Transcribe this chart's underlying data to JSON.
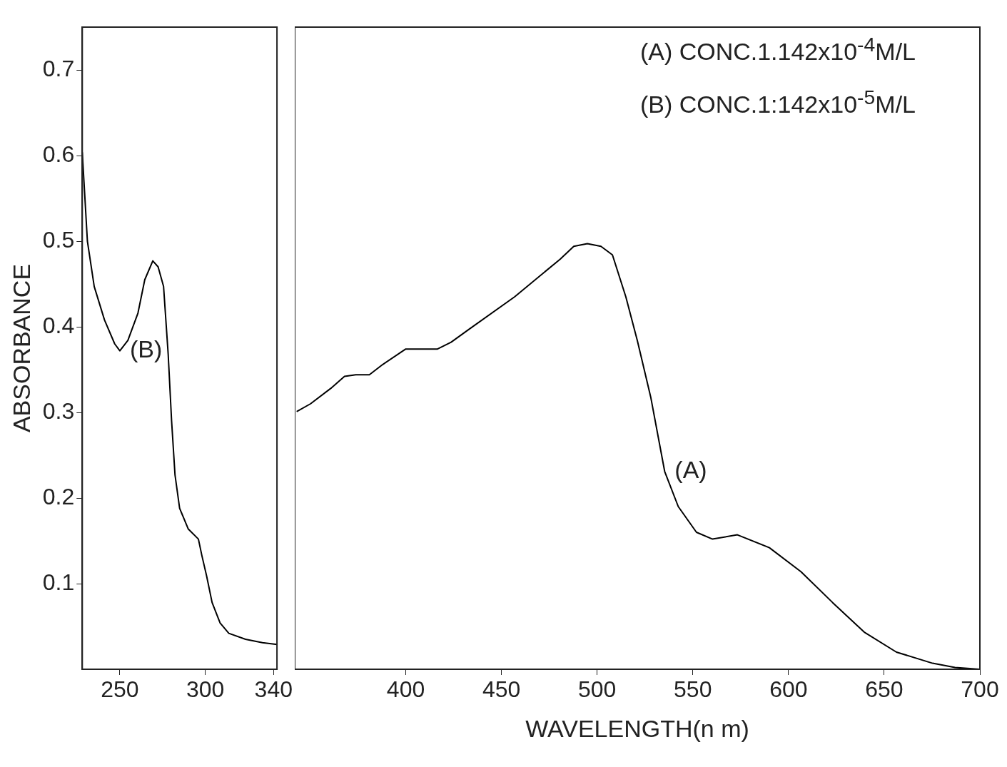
{
  "chart_data": [
    {
      "type": "line",
      "ylabel": "ABSORBANCE",
      "xlim": [
        228,
        342
      ],
      "xticks": [
        250,
        300,
        340
      ],
      "ylim": [
        0,
        0.75
      ],
      "yticks": [
        0.1,
        0.2,
        0.3,
        0.4,
        0.5,
        0.6,
        0.7
      ],
      "grid": false,
      "legend": false,
      "marker": "none",
      "line_style": "solid",
      "series": [
        {
          "name": "(B)",
          "color": "#000000",
          "x": [
            228,
            231,
            235,
            241,
            247,
            250,
            254.7,
            260.6,
            264.6,
            269.3,
            272.4,
            275.6,
            278.3,
            280.3,
            282.3,
            285,
            290,
            296,
            298,
            300.8,
            304,
            308.7,
            313.8,
            323.6,
            333.5,
            342
          ],
          "values": [
            0.604,
            0.5,
            0.447,
            0.408,
            0.38,
            0.372,
            0.384,
            0.416,
            0.455,
            0.477,
            0.47,
            0.447,
            0.368,
            0.29,
            0.227,
            0.188,
            0.164,
            0.152,
            0.133,
            0.109,
            0.078,
            0.054,
            0.042,
            0.035,
            0.031,
            0.029
          ]
        }
      ]
    },
    {
      "type": "line",
      "xlabel": "WAVELENGTH(n m)",
      "xlim": [
        342,
        700
      ],
      "xticks": [
        400,
        450,
        500,
        550,
        600,
        650,
        700
      ],
      "ylim": [
        0,
        0.75
      ],
      "yticks": [
        0.1,
        0.2,
        0.3,
        0.4,
        0.5,
        0.6,
        0.7
      ],
      "tick_labels": "x",
      "grid": false,
      "legend": false,
      "marker": "none",
      "line_style": "solid",
      "annotations": [
        "(A) CONC.1.142x10$^{-4}$M/L",
        "(B) CONC.1:142x10$^{-5}$M/L"
      ],
      "series": [
        {
          "name": "(A)",
          "color": "#000000",
          "x": [
            343,
            350.2,
            360.8,
            368,
            373.9,
            381,
            388,
            400,
            416.6,
            423.7,
            433,
            456.9,
            480.7,
            487.8,
            494.9,
            502,
            508,
            515,
            521,
            528,
            535.3,
            542.4,
            551.9,
            560.3,
            573.3,
            590,
            606.5,
            623,
            639.8,
            656.4,
            675.3,
            687,
            700
          ],
          "values": [
            0.301,
            0.31,
            0.328,
            0.342,
            0.344,
            0.344,
            0.356,
            0.374,
            0.374,
            0.382,
            0.397,
            0.435,
            0.479,
            0.494,
            0.497,
            0.494,
            0.484,
            0.435,
            0.384,
            0.318,
            0.231,
            0.19,
            0.16,
            0.152,
            0.157,
            0.142,
            0.114,
            0.078,
            0.043,
            0.02,
            0.007,
            0.002,
            0
          ]
        }
      ]
    }
  ]
}
